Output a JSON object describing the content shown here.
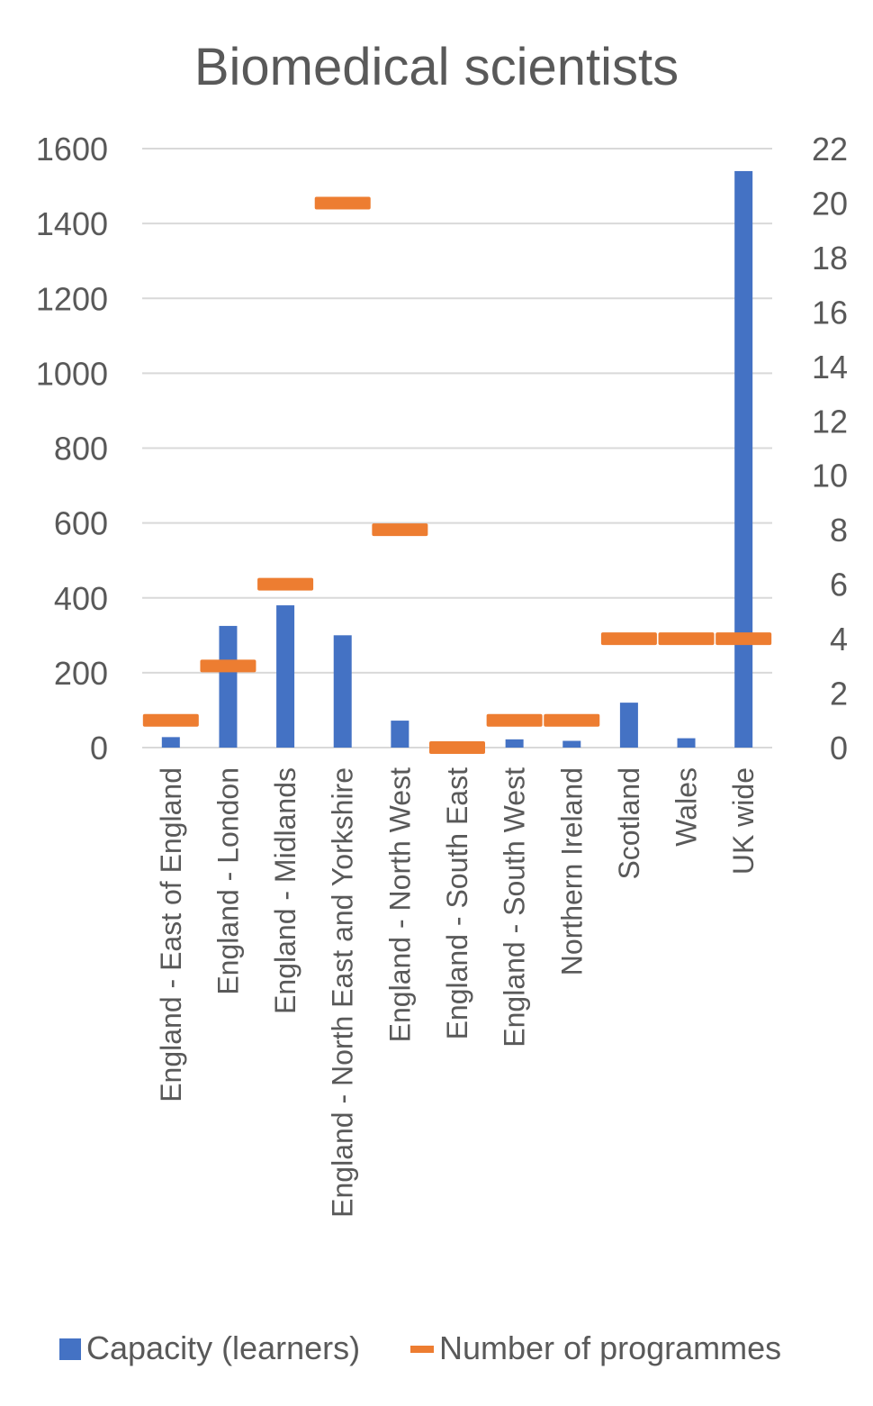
{
  "chart_data": {
    "type": "bar",
    "title": "Biomedical scientists",
    "categories": [
      "England - East of England",
      "England - London",
      "England - Midlands",
      "England - North East and Yorkshire",
      "England - North West",
      "England - South East",
      "England - South West",
      "Northern Ireland",
      "Scotland",
      "Wales",
      "UK wide"
    ],
    "series": [
      {
        "name": "Capacity (learners)",
        "type": "bar",
        "axis": "left",
        "color": "#4472c4",
        "values": [
          28,
          325,
          380,
          300,
          72,
          0,
          22,
          18,
          120,
          25,
          1540
        ]
      },
      {
        "name": "Number of programmes",
        "type": "marker",
        "axis": "right",
        "color": "#ed7d31",
        "values": [
          1,
          3,
          6,
          20,
          8,
          0,
          1,
          1,
          4,
          4,
          4
        ]
      }
    ],
    "y_left": {
      "min": 0,
      "max": 1600,
      "ticks": [
        "0",
        "200",
        "400",
        "600",
        "800",
        "1000",
        "1200",
        "1400",
        "1600"
      ]
    },
    "y_right": {
      "min": 0,
      "max": 22,
      "ticks": [
        "0",
        "2",
        "4",
        "6",
        "8",
        "10",
        "12",
        "14",
        "16",
        "18",
        "20",
        "22"
      ]
    },
    "grid": true,
    "legend_position": "bottom"
  }
}
